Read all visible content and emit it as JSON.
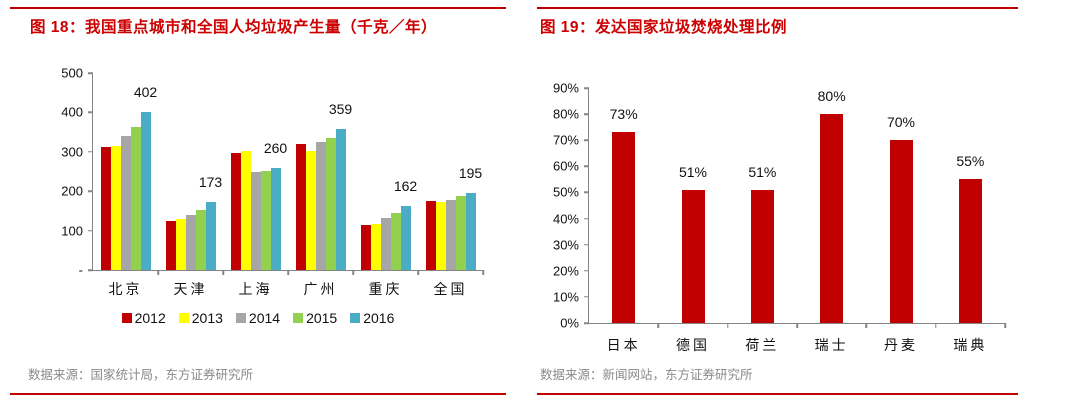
{
  "palette": {
    "accent_line": "#c00000",
    "title_color": "#cc0000",
    "axis_color": "#858585",
    "source_color": "#8a8a8a"
  },
  "chart_data": [
    {
      "type": "bar",
      "title": "图 18：我国重点城市和全国人均垃圾产生量（千克／年）",
      "categories": [
        "北京",
        "天津",
        "上海",
        "广州",
        "重庆",
        "全国"
      ],
      "series": [
        {
          "name": "2012",
          "color": "#c00000",
          "values": [
            311,
            125,
            298,
            320,
            114,
            176
          ]
        },
        {
          "name": "2013",
          "color": "#ffff00",
          "values": [
            315,
            130,
            302,
            301,
            118,
            172
          ]
        },
        {
          "name": "2014",
          "color": "#a6a6a6",
          "values": [
            340,
            140,
            248,
            326,
            132,
            177
          ]
        },
        {
          "name": "2015",
          "color": "#92d050",
          "values": [
            362,
            153,
            252,
            335,
            145,
            188
          ]
        },
        {
          "name": "2016",
          "color": "#4bacc6",
          "values": [
            402,
            173,
            260,
            359,
            162,
            195
          ]
        }
      ],
      "bar_labels": {
        "series": "2016",
        "values": [
          "402",
          "173",
          "260",
          "359",
          "162",
          "195"
        ]
      },
      "ylim": [
        0,
        500
      ],
      "ytick_step": 100,
      "ytick_labels": [
        "500",
        "400",
        "300",
        "200",
        "100",
        "-"
      ],
      "grid": false,
      "legend_position": "bottom",
      "source": "数据来源：国家统计局，东方证券研究所"
    },
    {
      "type": "bar",
      "title": "图 19：发达国家垃圾焚烧处理比例",
      "categories": [
        "日本",
        "德国",
        "荷兰",
        "瑞士",
        "丹麦",
        "瑞典"
      ],
      "values": [
        73,
        51,
        51,
        80,
        70,
        55
      ],
      "labels": [
        "73%",
        "51%",
        "51%",
        "80%",
        "70%",
        "55%"
      ],
      "bar_color": "#c00000",
      "ylim": [
        0,
        90
      ],
      "ytick_step": 10,
      "ytick_labels": [
        "90%",
        "80%",
        "70%",
        "60%",
        "50%",
        "40%",
        "30%",
        "20%",
        "10%",
        "0%"
      ],
      "grid": false,
      "legend_position": "none",
      "source": "数据来源：新闻网站，东方证券研究所"
    }
  ]
}
